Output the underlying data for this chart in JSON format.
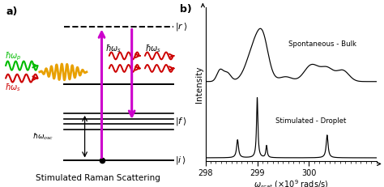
{
  "title_a": "a)",
  "title_b": "b)",
  "xlabel_scat": "$\\omega_{scat}$",
  "xlabel_unit": "($\\times 10^9$ rads/s)",
  "ylabel": "Intensity",
  "caption": "Stimulated Raman Scattering",
  "x_min": 298,
  "x_max": 301.3,
  "spontaneous_label": "Spontaneous - Bulk",
  "stimulated_label": "Stimulated - Droplet",
  "background": "#ffffff",
  "line_color": "#000000",
  "arrow_color": "#cc00cc",
  "green_color": "#00bb00",
  "red_color": "#cc0000",
  "gold_color": "#E8A000",
  "xticks": [
    298,
    299,
    300
  ],
  "xtick_labels": [
    "298",
    "299",
    "300"
  ]
}
